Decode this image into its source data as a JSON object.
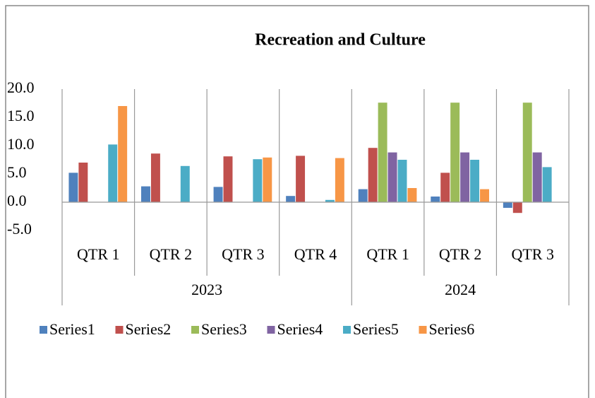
{
  "chart_data": {
    "type": "bar",
    "title": "Recreation and Culture",
    "categories": [
      "QTR 1",
      "QTR 2",
      "QTR 3",
      "QTR 4",
      "QTR 1",
      "QTR 2",
      "QTR 3"
    ],
    "groups": [
      {
        "name": "2023",
        "size": 4
      },
      {
        "name": "2024",
        "size": 3
      }
    ],
    "series": [
      {
        "name": "Series1",
        "color": "#4f81bd",
        "values": [
          5.2,
          2.8,
          2.7,
          1.1,
          2.3,
          1.0,
          -1.0
        ]
      },
      {
        "name": "Series2",
        "color": "#c0504d",
        "values": [
          7.0,
          8.6,
          8.1,
          8.2,
          9.6,
          5.2,
          -1.9
        ]
      },
      {
        "name": "Series3",
        "color": "#9bbb59",
        "values": [
          null,
          null,
          null,
          null,
          17.6,
          17.6,
          17.6
        ]
      },
      {
        "name": "Series4",
        "color": "#8064a2",
        "values": [
          null,
          null,
          null,
          null,
          8.8,
          8.8,
          8.8
        ]
      },
      {
        "name": "Series5",
        "color": "#4bacc6",
        "values": [
          10.2,
          6.4,
          7.6,
          0.4,
          7.5,
          7.5,
          6.2
        ]
      },
      {
        "name": "Series6",
        "color": "#f79646",
        "values": [
          17.0,
          null,
          7.9,
          7.8,
          2.5,
          2.3,
          null
        ]
      }
    ],
    "ylim": [
      -5,
      20
    ],
    "yticks": [
      {
        "value": 20,
        "label": "20.0"
      },
      {
        "value": 15,
        "label": "15.0"
      },
      {
        "value": 10,
        "label": "10.0"
      },
      {
        "value": 5,
        "label": "5.0"
      },
      {
        "value": 0,
        "label": "0.0"
      },
      {
        "value": -5,
        "label": "-5.0"
      }
    ],
    "legend": "bottom",
    "grid": false
  }
}
